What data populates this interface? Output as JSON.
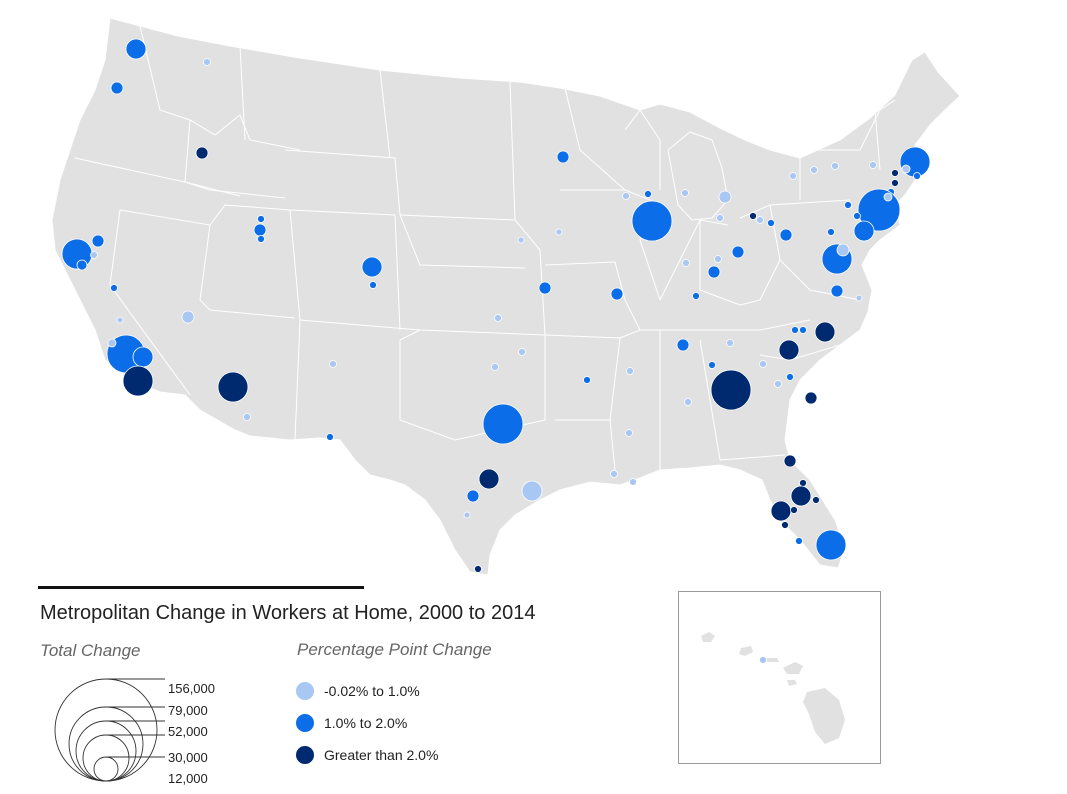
{
  "title": "Metropolitan Change in Workers at Home, 2000 to 2014",
  "legend": {
    "size_heading": "Total Change",
    "color_heading": "Percentage Point Change",
    "size_labels": [
      "156,000",
      "79,000",
      "52,000",
      "30,000",
      "12,000"
    ],
    "color_categories": [
      {
        "label": "-0.02% to 1.0%",
        "color": "#a9c7f3"
      },
      {
        "label": "1.0% to 2.0%",
        "color": "#0c6de8"
      },
      {
        "label": "Greater than 2.0%",
        "color": "#002a70"
      }
    ]
  },
  "colors": {
    "land": "#e1e1e1",
    "state_border": "#ffffff",
    "light": "#a9c7f3",
    "mid": "#0c6de8",
    "dark": "#002a70"
  }
}
